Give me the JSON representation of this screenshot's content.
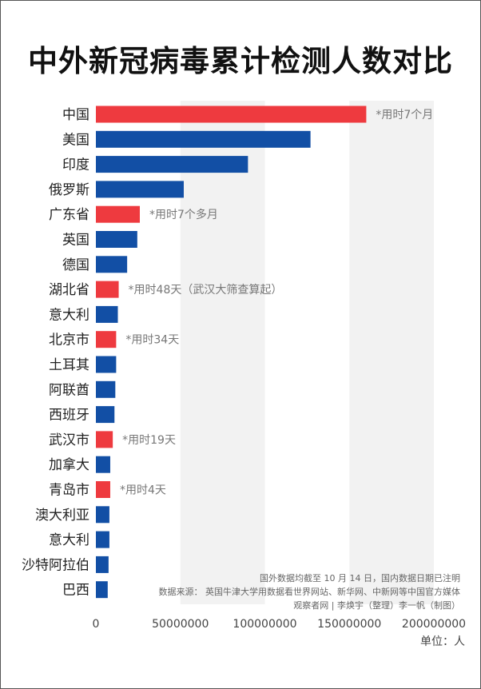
{
  "chart_data": {
    "type": "bar",
    "orientation": "horizontal",
    "title": "中外新冠病毒累计检测人数对比",
    "categories": [
      "中国",
      "美国",
      "印度",
      "俄罗斯",
      "广东省",
      "英国",
      "德国",
      "湖北省",
      "意大利",
      "北京市",
      "土耳其",
      "阿联酋",
      "西班牙",
      "武汉市",
      "加拿大",
      "青岛市",
      "澳大利亚",
      "意大利",
      "沙特阿拉伯",
      "巴西"
    ],
    "values": [
      160000000,
      127000000,
      90000000,
      52000000,
      26000000,
      24500000,
      18500000,
      13500000,
      13000000,
      12000000,
      12000000,
      11500000,
      11000000,
      10000000,
      8500000,
      8500000,
      8000000,
      8000000,
      7500000,
      7000000
    ],
    "highlight": [
      true,
      false,
      false,
      false,
      true,
      false,
      false,
      true,
      false,
      true,
      false,
      false,
      false,
      true,
      false,
      true,
      false,
      false,
      false,
      false
    ],
    "annotations": [
      "*用时7个月",
      "",
      "",
      "",
      "*用时7个多月",
      "",
      "",
      "*用时48天（武汉大筛查算起）",
      "",
      "*用时34天",
      "",
      "",
      "",
      "*用时19天",
      "",
      "*用时4天",
      "",
      "",
      "",
      ""
    ],
    "xlim": [
      0,
      200000000
    ],
    "xticks": [
      "0",
      "50000000",
      "100000000",
      "150000000",
      "200000000"
    ],
    "unit": "单位：人",
    "colors": {
      "domestic": "#ee3a3f",
      "foreign": "#124fa5",
      "band": "#f2f2f2"
    },
    "grid": "alternating vertical bands",
    "legend": "none"
  },
  "source": {
    "line1": "国外数据均截至 10 月 14 日，国内数据日期已注明",
    "line2": "数据来源： 英国牛津大学用数据看世界网站、新华网、中新网等中国官方媒体",
    "line3": "观察者网 | 李焕宇（整理）李一帆（制图）"
  }
}
